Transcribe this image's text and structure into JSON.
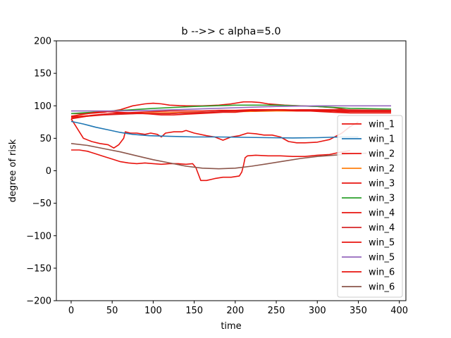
{
  "chart_data": {
    "type": "line",
    "title": "b -->> c  alpha=5.0",
    "xlabel": "time",
    "ylabel": "degree of risk",
    "xlim": [
      -18,
      408
    ],
    "ylim": [
      -200,
      200
    ],
    "xticks": [
      0,
      50,
      100,
      150,
      200,
      250,
      300,
      350,
      400
    ],
    "yticks": [
      -200,
      -150,
      -100,
      -50,
      0,
      50,
      100,
      150,
      200
    ],
    "grid": false,
    "legend_position": "right",
    "series": [
      {
        "name": "win_1",
        "color": "#e8140f",
        "points": [
          [
            0,
            80
          ],
          [
            5,
            70
          ],
          [
            10,
            60
          ],
          [
            15,
            50
          ],
          [
            25,
            45
          ],
          [
            35,
            42
          ],
          [
            45,
            40
          ],
          [
            52,
            35
          ],
          [
            58,
            40
          ],
          [
            64,
            50
          ],
          [
            66,
            60
          ],
          [
            72,
            58
          ],
          [
            80,
            58
          ],
          [
            90,
            56
          ],
          [
            97,
            58
          ],
          [
            105,
            56
          ],
          [
            110,
            52
          ],
          [
            115,
            58
          ],
          [
            125,
            60
          ],
          [
            135,
            60
          ],
          [
            140,
            62
          ],
          [
            150,
            58
          ],
          [
            165,
            54
          ],
          [
            175,
            52
          ],
          [
            185,
            47
          ],
          [
            195,
            52
          ],
          [
            205,
            54
          ],
          [
            215,
            58
          ],
          [
            225,
            57
          ],
          [
            235,
            55
          ],
          [
            245,
            55
          ],
          [
            255,
            52
          ],
          [
            265,
            45
          ],
          [
            275,
            43
          ],
          [
            285,
            43
          ],
          [
            300,
            44
          ],
          [
            315,
            48
          ],
          [
            330,
            58
          ],
          [
            340,
            68
          ],
          [
            350,
            75
          ]
        ]
      },
      {
        "name": "win_1",
        "color": "#1f77b4",
        "points": [
          [
            0,
            76
          ],
          [
            15,
            72
          ],
          [
            30,
            67
          ],
          [
            45,
            63
          ],
          [
            60,
            59
          ],
          [
            75,
            56
          ],
          [
            95,
            54
          ],
          [
            120,
            53
          ],
          [
            150,
            52
          ],
          [
            180,
            52
          ],
          [
            210,
            51.5
          ],
          [
            240,
            51
          ],
          [
            270,
            50.5
          ],
          [
            300,
            51
          ],
          [
            330,
            52
          ],
          [
            350,
            52
          ]
        ]
      },
      {
        "name": "win_2",
        "color": "#e8140f",
        "points": [
          [
            0,
            32
          ],
          [
            10,
            32
          ],
          [
            20,
            30
          ],
          [
            30,
            26
          ],
          [
            40,
            22
          ],
          [
            50,
            18
          ],
          [
            60,
            14
          ],
          [
            70,
            12
          ],
          [
            80,
            11
          ],
          [
            90,
            12
          ],
          [
            100,
            11
          ],
          [
            110,
            10
          ],
          [
            120,
            11
          ],
          [
            130,
            11
          ],
          [
            140,
            10
          ],
          [
            148,
            11
          ],
          [
            152,
            5
          ],
          [
            155,
            -5
          ],
          [
            158,
            -15
          ],
          [
            165,
            -15
          ],
          [
            175,
            -12
          ],
          [
            185,
            -10
          ],
          [
            195,
            -10
          ],
          [
            205,
            -8
          ],
          [
            208,
            -2
          ],
          [
            210,
            8
          ],
          [
            212,
            20
          ],
          [
            215,
            23
          ],
          [
            225,
            24
          ],
          [
            240,
            23
          ],
          [
            255,
            23
          ],
          [
            270,
            22
          ],
          [
            285,
            22
          ],
          [
            300,
            24
          ],
          [
            315,
            25
          ],
          [
            330,
            29
          ],
          [
            340,
            31
          ]
        ]
      },
      {
        "name": "win_2",
        "color": "#ff7f0e",
        "points": [
          [
            0,
            83
          ],
          [
            50,
            87
          ],
          [
            100,
            89
          ],
          [
            150,
            90
          ],
          [
            200,
            91
          ],
          [
            250,
            92
          ],
          [
            300,
            92
          ],
          [
            340,
            92
          ],
          [
            390,
            92
          ]
        ]
      },
      {
        "name": "win_3",
        "color": "#e8140f",
        "points": [
          [
            0,
            88
          ],
          [
            20,
            88
          ],
          [
            40,
            90
          ],
          [
            60,
            94
          ],
          [
            75,
            100
          ],
          [
            90,
            103
          ],
          [
            100,
            104
          ],
          [
            110,
            103
          ],
          [
            120,
            101
          ],
          [
            140,
            100
          ],
          [
            160,
            100
          ],
          [
            180,
            101
          ],
          [
            195,
            103
          ],
          [
            210,
            106
          ],
          [
            220,
            106
          ],
          [
            230,
            105
          ],
          [
            240,
            103
          ],
          [
            260,
            101
          ],
          [
            280,
            100
          ],
          [
            300,
            99
          ],
          [
            320,
            97
          ],
          [
            340,
            93
          ],
          [
            390,
            92
          ]
        ]
      },
      {
        "name": "win_3",
        "color": "#2ca02c",
        "points": [
          [
            0,
            88
          ],
          [
            50,
            92
          ],
          [
            100,
            96
          ],
          [
            150,
            99
          ],
          [
            200,
            101
          ],
          [
            250,
            101
          ],
          [
            300,
            99
          ],
          [
            340,
            96
          ],
          [
            390,
            95
          ]
        ]
      },
      {
        "name": "win_4",
        "color": "#e8140f",
        "points": [
          [
            0,
            84
          ],
          [
            10,
            86
          ],
          [
            20,
            88
          ],
          [
            30,
            90
          ],
          [
            45,
            91
          ],
          [
            60,
            90
          ],
          [
            75,
            89
          ],
          [
            90,
            88
          ],
          [
            105,
            88
          ],
          [
            120,
            88
          ],
          [
            135,
            89
          ],
          [
            150,
            89
          ],
          [
            165,
            90
          ],
          [
            180,
            91
          ],
          [
            195,
            92
          ],
          [
            210,
            93
          ],
          [
            225,
            92
          ],
          [
            240,
            93
          ],
          [
            255,
            94
          ],
          [
            270,
            93
          ],
          [
            285,
            92
          ],
          [
            300,
            92
          ],
          [
            315,
            92
          ],
          [
            330,
            91
          ],
          [
            350,
            91
          ],
          [
            390,
            91
          ]
        ]
      },
      {
        "name": "win_4",
        "color": "#d62728",
        "points": [
          [
            0,
            82
          ],
          [
            40,
            86
          ],
          [
            80,
            88
          ],
          [
            120,
            88
          ],
          [
            160,
            90
          ],
          [
            200,
            92
          ],
          [
            240,
            93
          ],
          [
            280,
            94
          ],
          [
            320,
            94
          ],
          [
            390,
            93
          ]
        ]
      },
      {
        "name": "win_5",
        "color": "#e8140f",
        "points": [
          [
            0,
            83
          ],
          [
            15,
            84
          ],
          [
            30,
            86
          ],
          [
            50,
            88
          ],
          [
            70,
            89
          ],
          [
            90,
            88
          ],
          [
            110,
            86
          ],
          [
            125,
            86
          ],
          [
            140,
            87
          ],
          [
            155,
            88
          ],
          [
            170,
            89
          ],
          [
            185,
            90
          ],
          [
            200,
            90
          ],
          [
            215,
            92
          ],
          [
            230,
            94
          ],
          [
            245,
            94
          ],
          [
            260,
            93
          ],
          [
            275,
            92
          ],
          [
            290,
            92
          ],
          [
            305,
            91
          ],
          [
            320,
            90
          ],
          [
            340,
            89
          ],
          [
            390,
            89
          ]
        ]
      },
      {
        "name": "win_5",
        "color": "#9467bd",
        "points": [
          [
            0,
            92
          ],
          [
            50,
            92
          ],
          [
            100,
            93
          ],
          [
            150,
            95
          ],
          [
            200,
            97
          ],
          [
            250,
            99
          ],
          [
            300,
            100
          ],
          [
            340,
            100
          ],
          [
            390,
            100
          ]
        ]
      },
      {
        "name": "win_6",
        "color": "#e8140f",
        "points": [
          [
            0,
            80
          ],
          [
            20,
            84
          ],
          [
            40,
            87
          ],
          [
            60,
            89
          ],
          [
            80,
            90
          ],
          [
            100,
            91
          ],
          [
            120,
            92
          ],
          [
            140,
            92
          ],
          [
            160,
            92
          ],
          [
            180,
            93
          ],
          [
            200,
            93
          ],
          [
            220,
            94
          ],
          [
            240,
            94
          ],
          [
            260,
            94
          ],
          [
            280,
            93
          ],
          [
            300,
            93
          ],
          [
            320,
            93
          ],
          [
            340,
            92
          ],
          [
            390,
            92
          ]
        ]
      },
      {
        "name": "win_6",
        "color": "#8c564b",
        "points": [
          [
            0,
            42
          ],
          [
            20,
            39
          ],
          [
            40,
            34
          ],
          [
            60,
            29
          ],
          [
            80,
            23
          ],
          [
            100,
            17
          ],
          [
            120,
            12
          ],
          [
            140,
            7
          ],
          [
            160,
            4
          ],
          [
            180,
            3
          ],
          [
            200,
            4
          ],
          [
            220,
            7
          ],
          [
            240,
            11
          ],
          [
            260,
            15
          ],
          [
            280,
            19
          ],
          [
            300,
            22
          ],
          [
            320,
            24
          ],
          [
            340,
            26
          ],
          [
            360,
            27
          ]
        ]
      }
    ]
  }
}
